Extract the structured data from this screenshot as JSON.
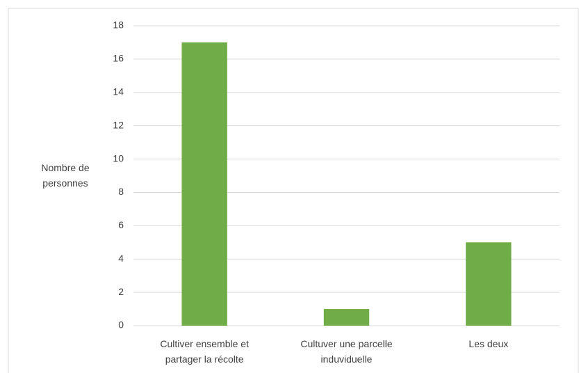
{
  "chart_data": {
    "type": "bar",
    "y_label": "Nombre de personnes",
    "categories": [
      "Cultiver ensemble et partager la récolte",
      "Cultuver une parcelle induviduelle",
      "Les deux"
    ],
    "values": [
      17,
      1,
      5
    ],
    "color": "#70ad47",
    "ylim": [
      0,
      18
    ],
    "yticks": [
      0,
      2,
      4,
      6,
      8,
      10,
      12,
      14,
      16,
      18
    ],
    "grid": true
  }
}
